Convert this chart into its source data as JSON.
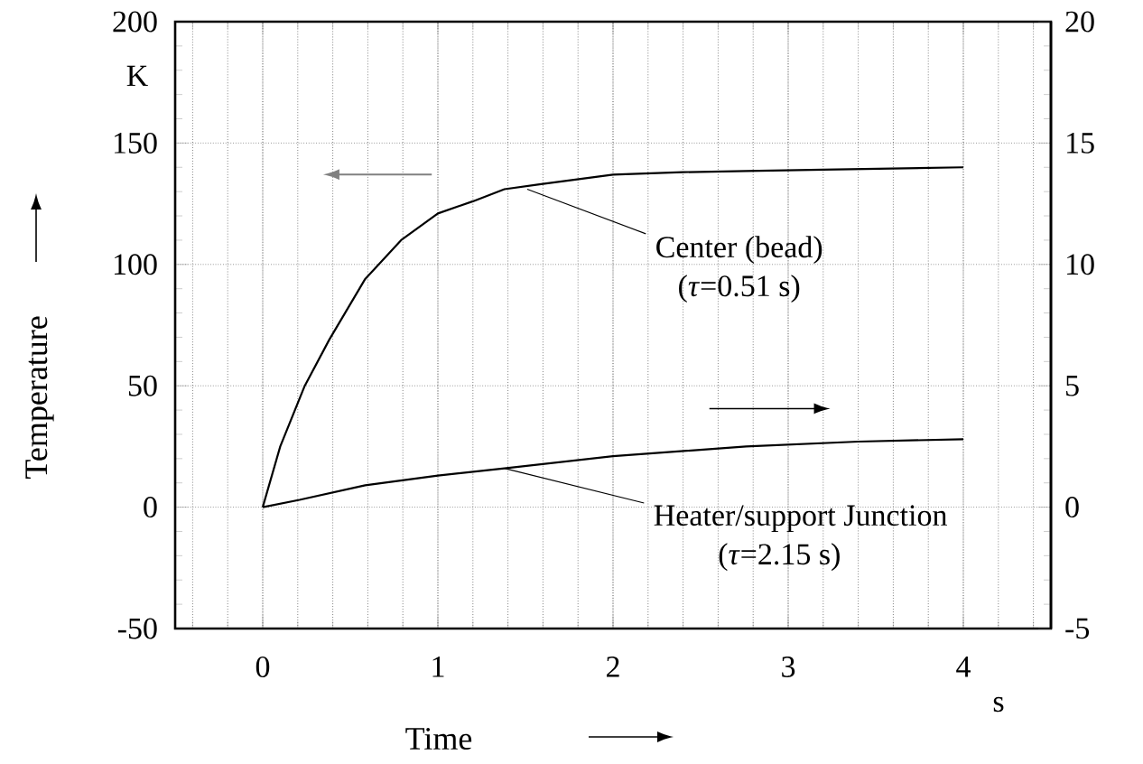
{
  "chart_data": {
    "type": "line",
    "xlabel": "Time",
    "ylabel": "Temperature",
    "xlim": [
      -0.5,
      4.5
    ],
    "xticks": [
      0,
      1,
      2,
      3,
      4
    ],
    "ylim": [
      -50,
      200
    ],
    "yticks": [
      -50,
      0,
      50,
      100,
      150,
      200
    ],
    "y2lim": [
      -5,
      20
    ],
    "y2ticks": [
      -5,
      0,
      5,
      10,
      15,
      20
    ],
    "grid": true,
    "marker": "none",
    "line_style": "solid",
    "series": [
      {
        "color": "#000000",
        "x": [
          0,
          0.1,
          0.24,
          0.38,
          0.585,
          0.79,
          1.0,
          1.2,
          1.38,
          1.58,
          2.0,
          2.4,
          2.76,
          3.2,
          3.6,
          4.0
        ],
        "values": [
          0,
          25,
          50,
          69,
          94,
          110,
          121,
          126,
          131,
          133,
          137,
          138,
          138.5,
          139,
          139.5,
          140
        ]
      },
      {
        "color": "#000000",
        "axis": "y2",
        "x": [
          0,
          0.21,
          0.585,
          1.0,
          1.38,
          2.0,
          2.76,
          3.4,
          4.0
        ],
        "values": [
          0,
          0.3,
          0.9,
          1.3,
          1.6,
          2.1,
          2.5,
          2.7,
          2.8
        ]
      }
    ],
    "annotations": [
      {
        "text": "Center (bead)",
        "x": 1.51,
        "y": 131
      },
      "(*τ*=0.51 s)",
      {
        "text": "Heater/support Junction",
        "x": 1.38,
        "y": 16
      },
      "(*τ*=2.15 s)",
      "K",
      "s"
    ]
  }
}
